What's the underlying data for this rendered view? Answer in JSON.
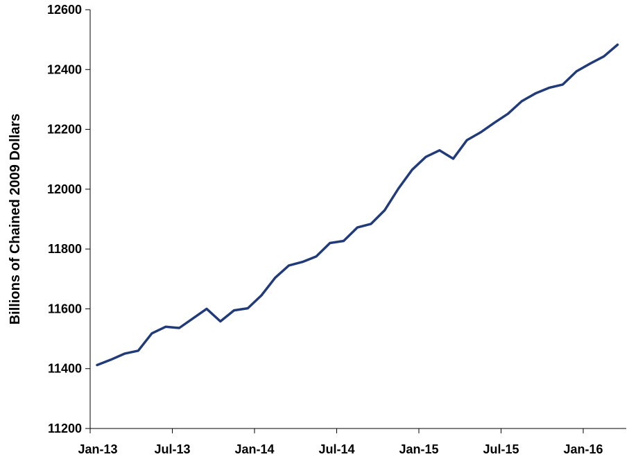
{
  "chart_data": {
    "type": "line",
    "title": "",
    "xlabel": "",
    "ylabel": "Billions of Chained 2009 Dollars",
    "ylim": [
      11200,
      12600
    ],
    "yticks": [
      11200,
      11400,
      11600,
      11800,
      12000,
      12200,
      12400,
      12600
    ],
    "xtick_labels": [
      "Jan-13",
      "Jul-13",
      "Jan-14",
      "Jul-14",
      "Jan-15",
      "Jul-15",
      "Jan-16"
    ],
    "x": [
      "Jan-13",
      "Feb-13",
      "Mar-13",
      "Apr-13",
      "May-13",
      "Jun-13",
      "Jul-13",
      "Aug-13",
      "Sep-13",
      "Oct-13",
      "Nov-13",
      "Dec-13",
      "Jan-14",
      "Feb-14",
      "Mar-14",
      "Apr-14",
      "May-14",
      "Jun-14",
      "Jul-14",
      "Aug-14",
      "Sep-14",
      "Oct-14",
      "Nov-14",
      "Dec-14",
      "Jan-15",
      "Feb-15",
      "Mar-15",
      "Apr-15",
      "May-15",
      "Jun-15",
      "Jul-15",
      "Aug-15",
      "Sep-15",
      "Oct-15",
      "Nov-15",
      "Dec-15",
      "Jan-16",
      "Feb-16",
      "Mar-16"
    ],
    "series": [
      {
        "color": "#213b78",
        "values": [
          11412,
          11430,
          11450,
          11460,
          11518,
          11540,
          11536,
          11568,
          11600,
          11558,
          11595,
          11602,
          11645,
          11704,
          11745,
          11757,
          11775,
          11820,
          11827,
          11872,
          11884,
          11930,
          12002,
          12065,
          12108,
          12130,
          12102,
          12164,
          12190,
          12222,
          12252,
          12294,
          12320,
          12339,
          12350,
          12394,
          12420,
          12444,
          12483
        ]
      }
    ],
    "grid": false,
    "legend": "none"
  }
}
